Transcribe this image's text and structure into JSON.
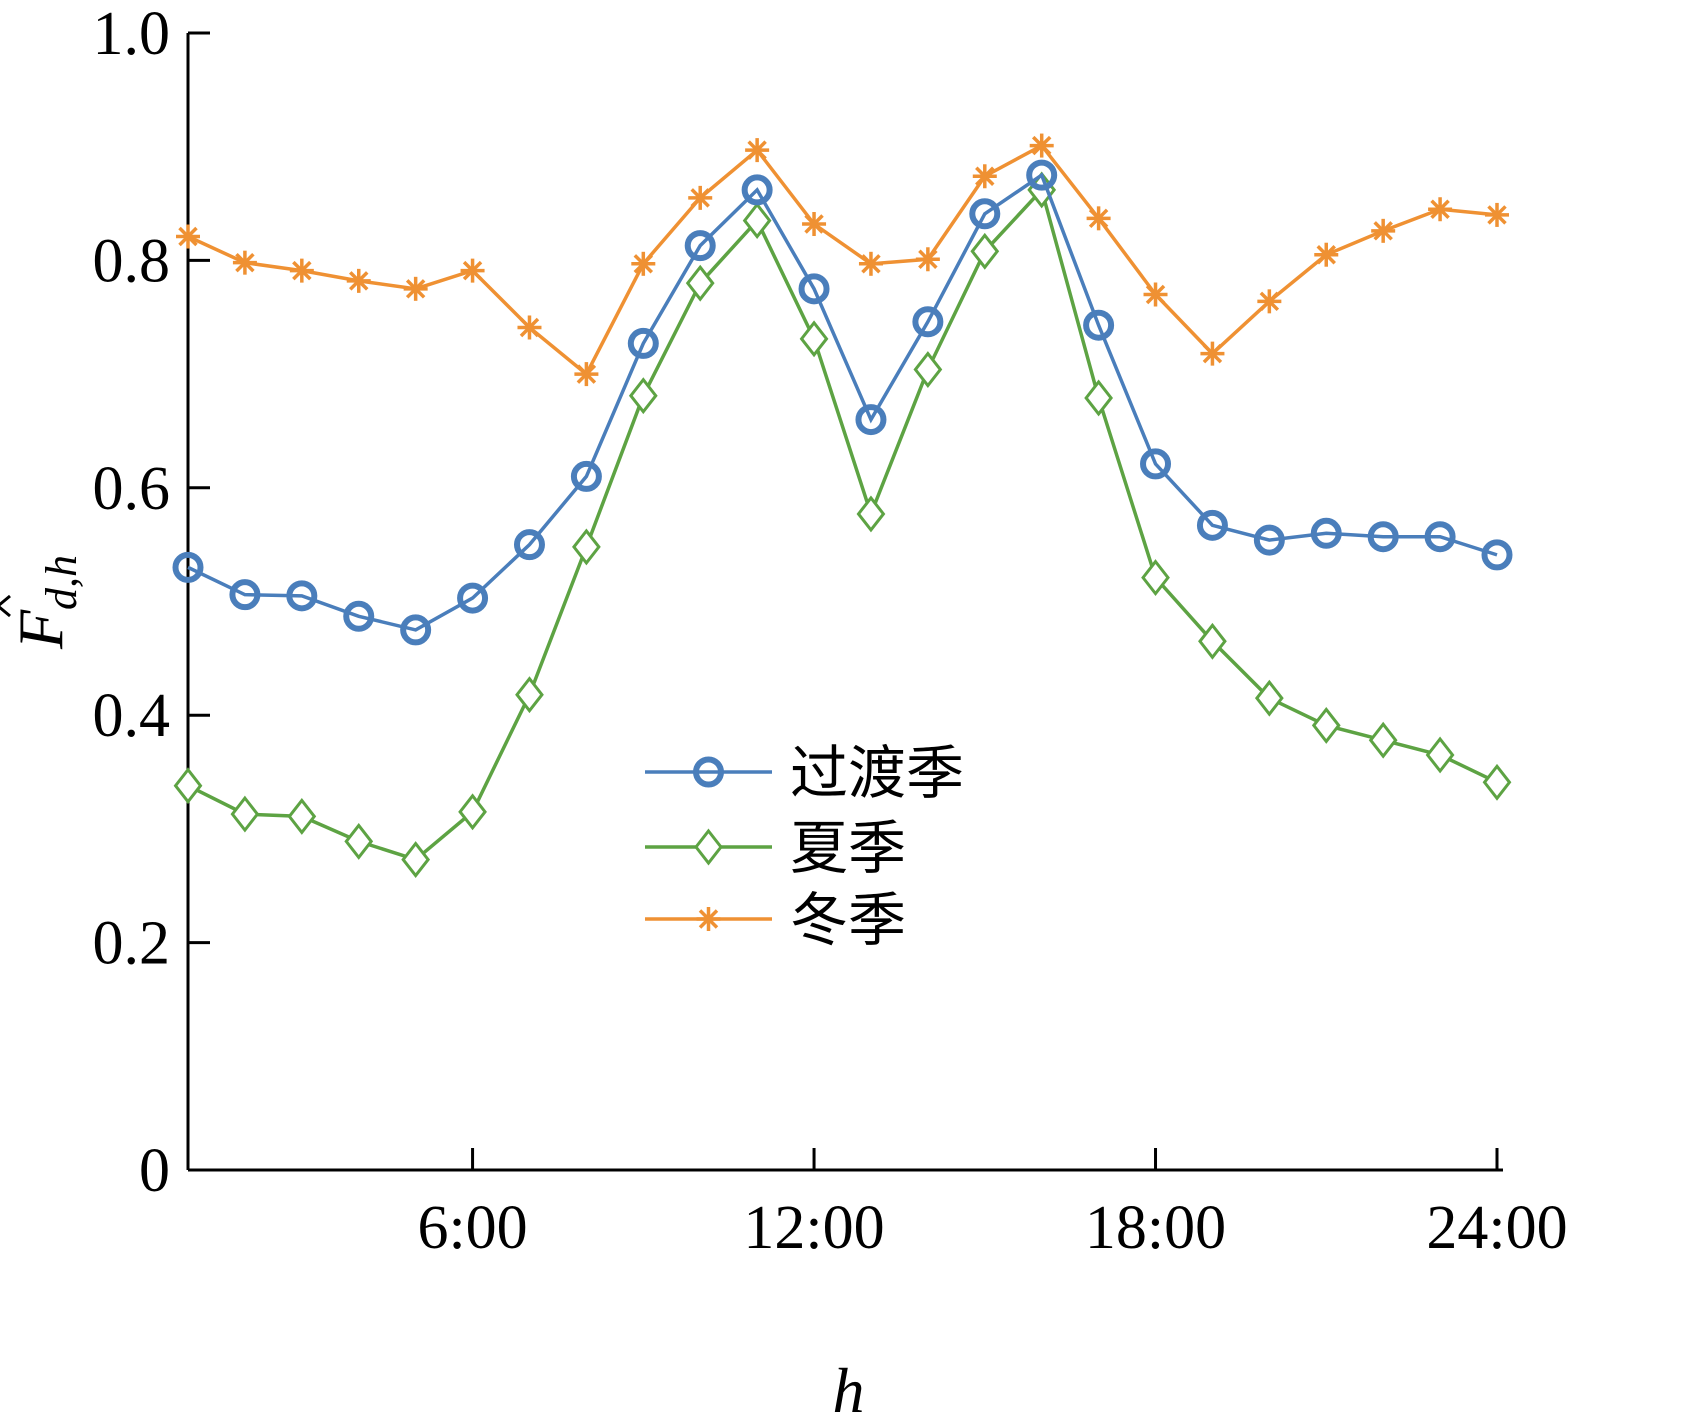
{
  "chart_data": {
    "type": "line",
    "x": [
      1,
      2,
      3,
      4,
      5,
      6,
      7,
      8,
      9,
      10,
      11,
      12,
      13,
      14,
      15,
      16,
      17,
      18,
      19,
      20,
      21,
      22,
      23,
      24
    ],
    "xlim": [
      1,
      24
    ],
    "xticks": [
      {
        "value": 6,
        "label": "6:00"
      },
      {
        "value": 12,
        "label": "12:00"
      },
      {
        "value": 18,
        "label": "18:00"
      },
      {
        "value": 24,
        "label": "24:00"
      }
    ],
    "ylim": [
      0,
      1.0
    ],
    "yticks": [
      {
        "value": 0,
        "label": "0"
      },
      {
        "value": 0.2,
        "label": "0.2"
      },
      {
        "value": 0.4,
        "label": "0.4"
      },
      {
        "value": 0.6,
        "label": "0.6"
      },
      {
        "value": 0.8,
        "label": "0.8"
      },
      {
        "value": 1.0,
        "label": "1.0"
      }
    ],
    "xlabel": "h",
    "ylabel_main": "F",
    "ylabel_sub": "d,h",
    "grid": false,
    "legend_position": "center",
    "series": [
      {
        "name": "过渡季",
        "color": "#4a7ebb",
        "marker": "circle",
        "values": [
          0.53,
          0.506,
          0.505,
          0.487,
          0.475,
          0.503,
          0.55,
          0.61,
          0.727,
          0.813,
          0.862,
          0.775,
          0.66,
          0.746,
          0.841,
          0.875,
          0.743,
          0.621,
          0.567,
          0.554,
          0.56,
          0.557,
          0.557,
          0.541
        ]
      },
      {
        "name": "夏季",
        "color": "#5da343",
        "marker": "diamond",
        "values": [
          0.338,
          0.313,
          0.311,
          0.289,
          0.273,
          0.315,
          0.418,
          0.548,
          0.681,
          0.78,
          0.835,
          0.731,
          0.577,
          0.704,
          0.808,
          0.862,
          0.679,
          0.521,
          0.465,
          0.415,
          0.391,
          0.378,
          0.365,
          0.341
        ]
      },
      {
        "name": "冬季",
        "color": "#ef9133",
        "marker": "star",
        "values": [
          0.821,
          0.798,
          0.791,
          0.782,
          0.775,
          0.791,
          0.741,
          0.7,
          0.797,
          0.855,
          0.897,
          0.832,
          0.797,
          0.801,
          0.874,
          0.901,
          0.837,
          0.77,
          0.718,
          0.764,
          0.805,
          0.826,
          0.845,
          0.84
        ]
      }
    ]
  }
}
